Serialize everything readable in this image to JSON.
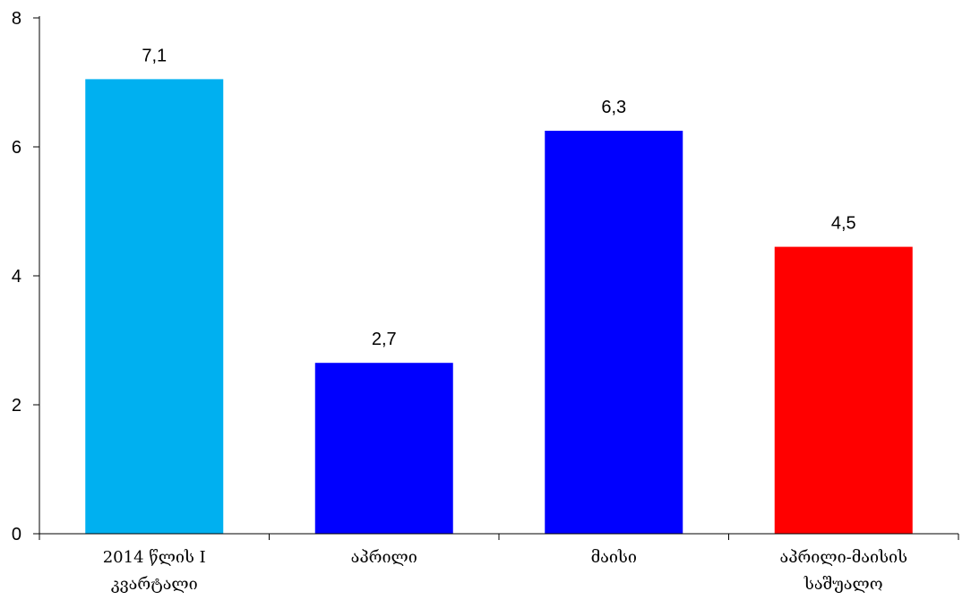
{
  "chart_data": {
    "type": "bar",
    "categories": [
      [
        "2014 წლის I",
        "კვარტალი"
      ],
      [
        "აპრილი"
      ],
      [
        "მაისი"
      ],
      [
        "აპრილი-მაისის",
        "საშუალო"
      ]
    ],
    "values": [
      7.05,
      2.65,
      6.25,
      4.45
    ],
    "data_labels": [
      "7,1",
      "2,7",
      "6,3",
      "4,5"
    ],
    "colors": [
      "#00b0f0",
      "#0000ff",
      "#0000ff",
      "#ff0000"
    ],
    "yticks": [
      "0",
      "2",
      "4",
      "6",
      "8"
    ],
    "ylim": [
      0,
      8
    ],
    "grid": false,
    "legend": "none"
  }
}
